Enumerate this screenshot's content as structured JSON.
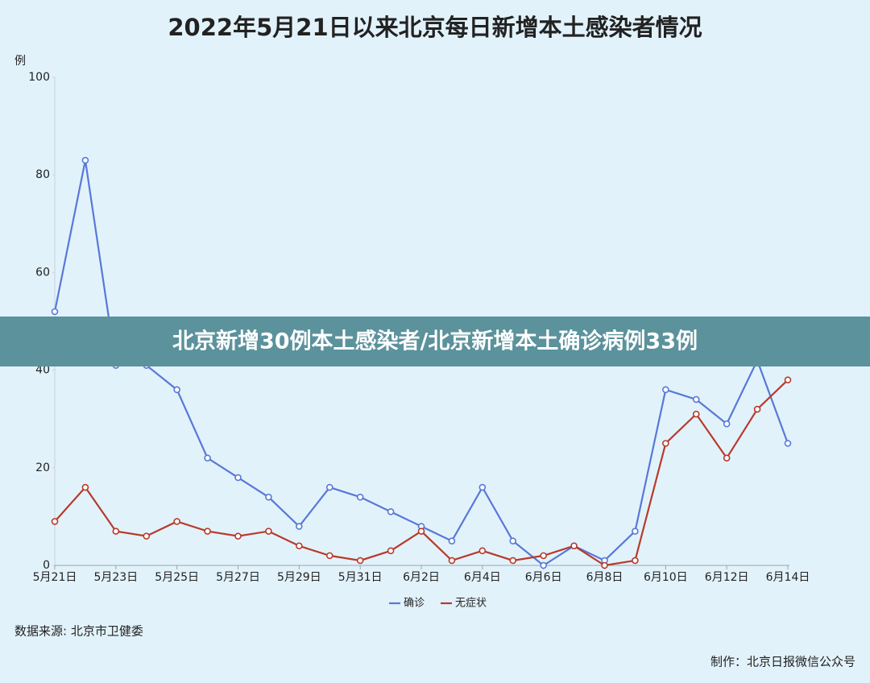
{
  "chart_data": {
    "type": "line",
    "title": "2022年5月21日以来北京每日新增本土感染者情况",
    "y_label": "例",
    "categories": [
      "5月21日",
      null,
      "5月23日",
      null,
      "5月25日",
      null,
      "5月27日",
      null,
      "5月29日",
      null,
      "5月31日",
      null,
      "6月2日",
      null,
      "6月4日",
      null,
      "6月6日",
      null,
      "6月8日",
      null,
      "6月10日",
      null,
      "6月12日",
      null,
      "6月14日"
    ],
    "series": [
      {
        "name": "确诊",
        "color": "#5878d8",
        "values": [
          52,
          83,
          41,
          41,
          36,
          22,
          18,
          14,
          8,
          16,
          14,
          11,
          8,
          5,
          16,
          5,
          0,
          4,
          1,
          7,
          36,
          34,
          29,
          42,
          25
        ]
      },
      {
        "name": "无症状",
        "color": "#b83a2b",
        "values": [
          9,
          16,
          7,
          6,
          9,
          7,
          6,
          7,
          4,
          2,
          1,
          3,
          7,
          1,
          3,
          1,
          2,
          4,
          0,
          1,
          25,
          31,
          22,
          32,
          38
        ]
      }
    ],
    "ylim": [
      0,
      100
    ],
    "yticks": [
      0,
      20,
      40,
      60,
      80,
      100
    ],
    "grid": false,
    "legend": "bottom",
    "source": "数据来源: 北京市卫健委",
    "credit": "制作：北京日报微信公众号"
  },
  "banner": "北京新增30例本土感染者/北京新增本土确诊病例33例"
}
